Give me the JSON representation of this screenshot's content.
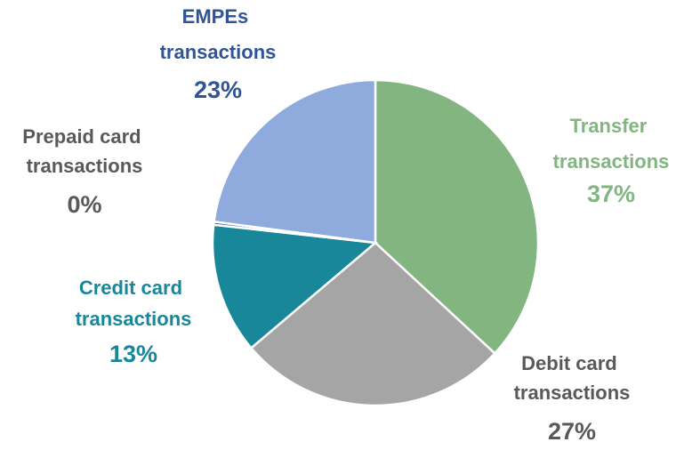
{
  "chart_data": {
    "type": "pie",
    "categories": [
      "Transfer transactions",
      "Debit card transactions",
      "Credit card transactions",
      "Prepaid card transactions",
      "EMPEs transactions"
    ],
    "values": [
      37,
      27,
      13,
      0.3,
      23
    ],
    "value_labels": [
      "37%",
      "27%",
      "13%",
      "0%",
      "23%"
    ],
    "colors": [
      "#82b580",
      "#a5a5a5",
      "#18879a",
      "#2f5597",
      "#8faadc"
    ],
    "label_colors": [
      "#82b580",
      "#595959",
      "#18879a",
      "#595959",
      "#2f5597"
    ]
  }
}
